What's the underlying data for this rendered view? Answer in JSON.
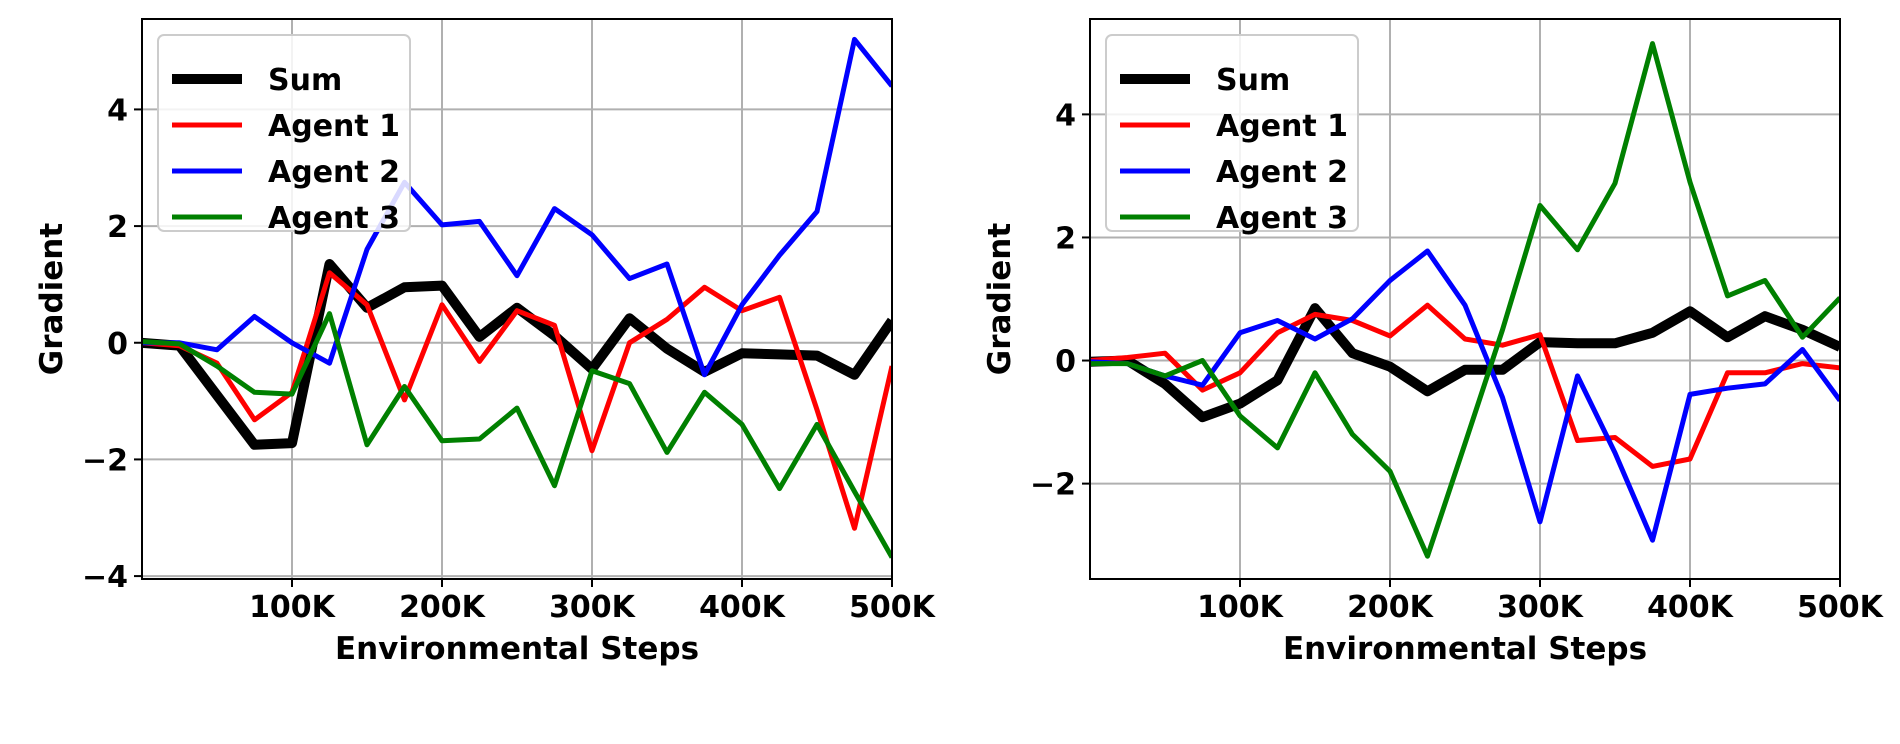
{
  "chart_data": [
    {
      "type": "line",
      "xlabel": "Environmental Steps",
      "ylabel": "Gradient",
      "xlim": [
        0,
        500000
      ],
      "ylim": [
        -4.05,
        5.55
      ],
      "xticks": [
        100000,
        200000,
        300000,
        400000,
        500000
      ],
      "xtick_labels": [
        "100K",
        "200K",
        "300K",
        "400K",
        "500K"
      ],
      "yticks": [
        -4,
        -2,
        0,
        2,
        4
      ],
      "ytick_labels": [
        "−4",
        "−2",
        "0",
        "2",
        "4"
      ],
      "grid": true,
      "legend_position": "top-left",
      "x": [
        0,
        25000,
        50000,
        75000,
        100000,
        125000,
        150000,
        175000,
        200000,
        225000,
        250000,
        275000,
        300000,
        325000,
        350000,
        375000,
        400000,
        425000,
        450000,
        475000,
        500000
      ],
      "series": [
        {
          "name": "Sum",
          "color": "#000000",
          "width": 10,
          "values": [
            0.0,
            -0.05,
            -0.9,
            -1.75,
            -1.72,
            1.35,
            0.6,
            0.95,
            0.98,
            0.1,
            0.6,
            0.12,
            -0.45,
            0.42,
            -0.1,
            -0.5,
            -0.18,
            -0.2,
            -0.22,
            -0.55,
            0.38
          ]
        },
        {
          "name": "Agent 1",
          "color": "#ff0000",
          "width": 5,
          "values": [
            0.0,
            -0.05,
            -0.35,
            -1.32,
            -0.85,
            1.2,
            0.65,
            -0.98,
            0.65,
            -0.32,
            0.55,
            0.3,
            -1.85,
            0.0,
            0.4,
            0.95,
            0.55,
            0.78,
            -1.15,
            -3.18,
            -0.4
          ]
        },
        {
          "name": "Agent 2",
          "color": "#0000ff",
          "width": 5,
          "values": [
            0.0,
            0.0,
            -0.12,
            0.45,
            0.0,
            -0.35,
            1.6,
            2.75,
            2.02,
            2.08,
            1.15,
            2.3,
            1.85,
            1.1,
            1.35,
            -0.55,
            0.65,
            1.5,
            2.25,
            5.2,
            4.4
          ]
        },
        {
          "name": "Agent 3",
          "color": "#008000",
          "width": 5,
          "values": [
            0.02,
            -0.02,
            -0.4,
            -0.85,
            -0.88,
            0.5,
            -1.75,
            -0.75,
            -1.68,
            -1.65,
            -1.12,
            -2.45,
            -0.48,
            -0.7,
            -1.88,
            -0.85,
            -1.4,
            -2.5,
            -1.4,
            -2.55,
            -3.68
          ]
        }
      ]
    },
    {
      "type": "line",
      "xlabel": "Environmental Steps",
      "ylabel": "Gradient",
      "xlim": [
        0,
        500000
      ],
      "ylim": [
        -3.55,
        5.55
      ],
      "xticks": [
        100000,
        200000,
        300000,
        400000,
        500000
      ],
      "xtick_labels": [
        "100K",
        "200K",
        "300K",
        "400K",
        "500K"
      ],
      "yticks": [
        -2,
        0,
        2,
        4
      ],
      "ytick_labels": [
        "−2",
        "0",
        "2",
        "4"
      ],
      "grid": true,
      "legend_position": "top-left",
      "x": [
        0,
        25000,
        50000,
        75000,
        100000,
        125000,
        150000,
        175000,
        200000,
        225000,
        250000,
        275000,
        300000,
        325000,
        350000,
        375000,
        400000,
        425000,
        450000,
        475000,
        500000
      ],
      "series": [
        {
          "name": "Sum",
          "color": "#000000",
          "width": 10,
          "values": [
            -0.02,
            0.0,
            -0.38,
            -0.92,
            -0.7,
            -0.32,
            0.85,
            0.12,
            -0.1,
            -0.5,
            -0.15,
            -0.15,
            0.3,
            0.28,
            0.28,
            0.45,
            0.8,
            0.38,
            0.72,
            0.5,
            0.22
          ]
        },
        {
          "name": "Agent 1",
          "color": "#ff0000",
          "width": 5,
          "values": [
            0.0,
            0.05,
            0.12,
            -0.48,
            -0.2,
            0.45,
            0.75,
            0.65,
            0.4,
            0.9,
            0.35,
            0.25,
            0.42,
            -1.3,
            -1.25,
            -1.72,
            -1.6,
            -0.2,
            -0.2,
            -0.05,
            -0.12
          ]
        },
        {
          "name": "Agent 2",
          "color": "#0000ff",
          "width": 5,
          "values": [
            -0.02,
            -0.05,
            -0.25,
            -0.4,
            0.45,
            0.65,
            0.35,
            0.68,
            1.3,
            1.78,
            0.9,
            -0.6,
            -2.62,
            -0.25,
            -1.5,
            -2.92,
            -0.55,
            -0.45,
            -0.38,
            0.18,
            -0.65
          ]
        },
        {
          "name": "Agent 3",
          "color": "#008000",
          "width": 5,
          "values": [
            -0.05,
            -0.05,
            -0.25,
            0.0,
            -0.9,
            -1.42,
            -0.2,
            -1.2,
            -1.8,
            -3.18,
            -1.35,
            0.5,
            2.52,
            1.8,
            2.88,
            5.15,
            2.9,
            1.05,
            1.3,
            0.38,
            1.02
          ]
        }
      ]
    }
  ]
}
